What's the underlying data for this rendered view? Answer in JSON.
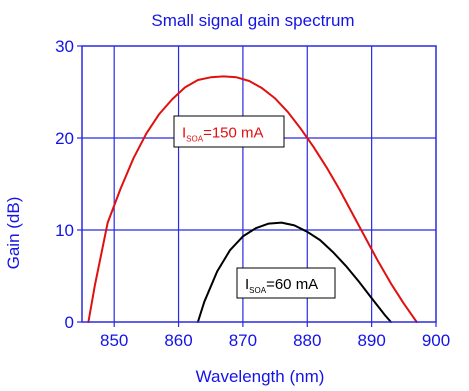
{
  "chart_data": {
    "type": "line",
    "title": "Small signal gain spectrum",
    "xlabel": "Wavelength (nm)",
    "ylabel": "Gain (dB)",
    "xlim": [
      845,
      900
    ],
    "ylim": [
      0,
      30
    ],
    "xticks": [
      850,
      860,
      870,
      880,
      890,
      900
    ],
    "yticks": [
      0,
      10,
      20,
      30
    ],
    "grid": true,
    "colors": {
      "axis_text": "#1414e6",
      "grid": "#2a2ae0",
      "frame": "#2a2ae0",
      "series_150": "#e01010",
      "series_60": "#000000"
    },
    "series": [
      {
        "id": "150mA",
        "color": "#e01010",
        "x": [
          846.0,
          847.0,
          849.0,
          851.0,
          853.0,
          855.0,
          857.0,
          859.0,
          861.0,
          863.0,
          865.0,
          867.0,
          869.0,
          871.0,
          873.0,
          875.0,
          877.0,
          879.0,
          881.0,
          883.0,
          885.0,
          887.0,
          889.0,
          891.0,
          893.0,
          895.0,
          896.5,
          897.0
        ],
        "y": [
          0.0,
          4.0,
          10.8,
          14.5,
          17.8,
          20.5,
          22.6,
          24.2,
          25.5,
          26.3,
          26.6,
          26.7,
          26.6,
          26.2,
          25.4,
          24.3,
          22.8,
          21.0,
          19.0,
          16.8,
          14.4,
          11.8,
          9.2,
          6.6,
          4.2,
          2.0,
          0.5,
          0.0
        ]
      },
      {
        "id": "60mA",
        "color": "#000000",
        "x": [
          863.0,
          864.0,
          866.0,
          868.0,
          870.0,
          872.0,
          874.0,
          876.0,
          878.0,
          880.0,
          882.0,
          884.0,
          886.0,
          888.0,
          890.0,
          892.0,
          893.0
        ],
        "y": [
          0.0,
          2.2,
          5.5,
          7.8,
          9.3,
          10.2,
          10.7,
          10.8,
          10.5,
          9.8,
          8.9,
          7.6,
          6.1,
          4.4,
          2.6,
          0.8,
          0.0
        ]
      }
    ],
    "annotations": [
      {
        "main": "I",
        "sub": "SOA",
        "rest": "=150 mA",
        "color": "#e01010"
      },
      {
        "main": "I",
        "sub": "SOA",
        "rest": "=60 mA",
        "color": "#000000"
      }
    ]
  }
}
